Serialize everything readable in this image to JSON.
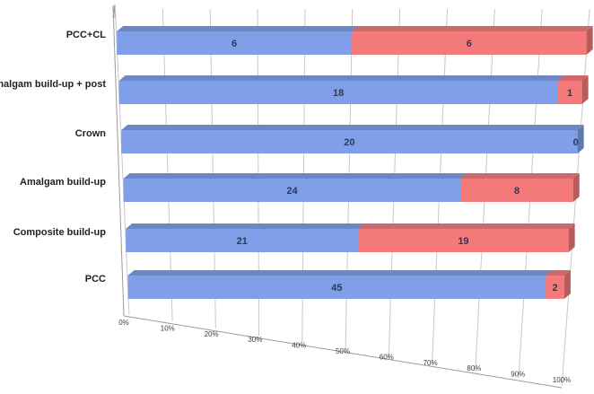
{
  "chart_data": {
    "type": "bar",
    "orientation": "horizontal",
    "stacking": "percent",
    "three_d": true,
    "categories": [
      "PCC+CL",
      "Amalgam build-up + post",
      "Crown",
      "Amalgam build-up",
      "Composite build-up",
      "PCC"
    ],
    "series": [
      {
        "values": [
          6,
          18,
          20,
          24,
          21,
          45
        ],
        "color": "#7f9fe8"
      },
      {
        "values": [
          6,
          1,
          0,
          8,
          19,
          2
        ],
        "color": "#f47a7a"
      }
    ],
    "xticks": [
      "0%",
      "10%",
      "20%",
      "30%",
      "40%",
      "50%",
      "60%",
      "70%",
      "80%",
      "90%",
      "100%"
    ],
    "xlim": [
      0,
      100
    ],
    "grid": true,
    "legend": "none",
    "title": "",
    "xlabel": "",
    "ylabel": ""
  }
}
